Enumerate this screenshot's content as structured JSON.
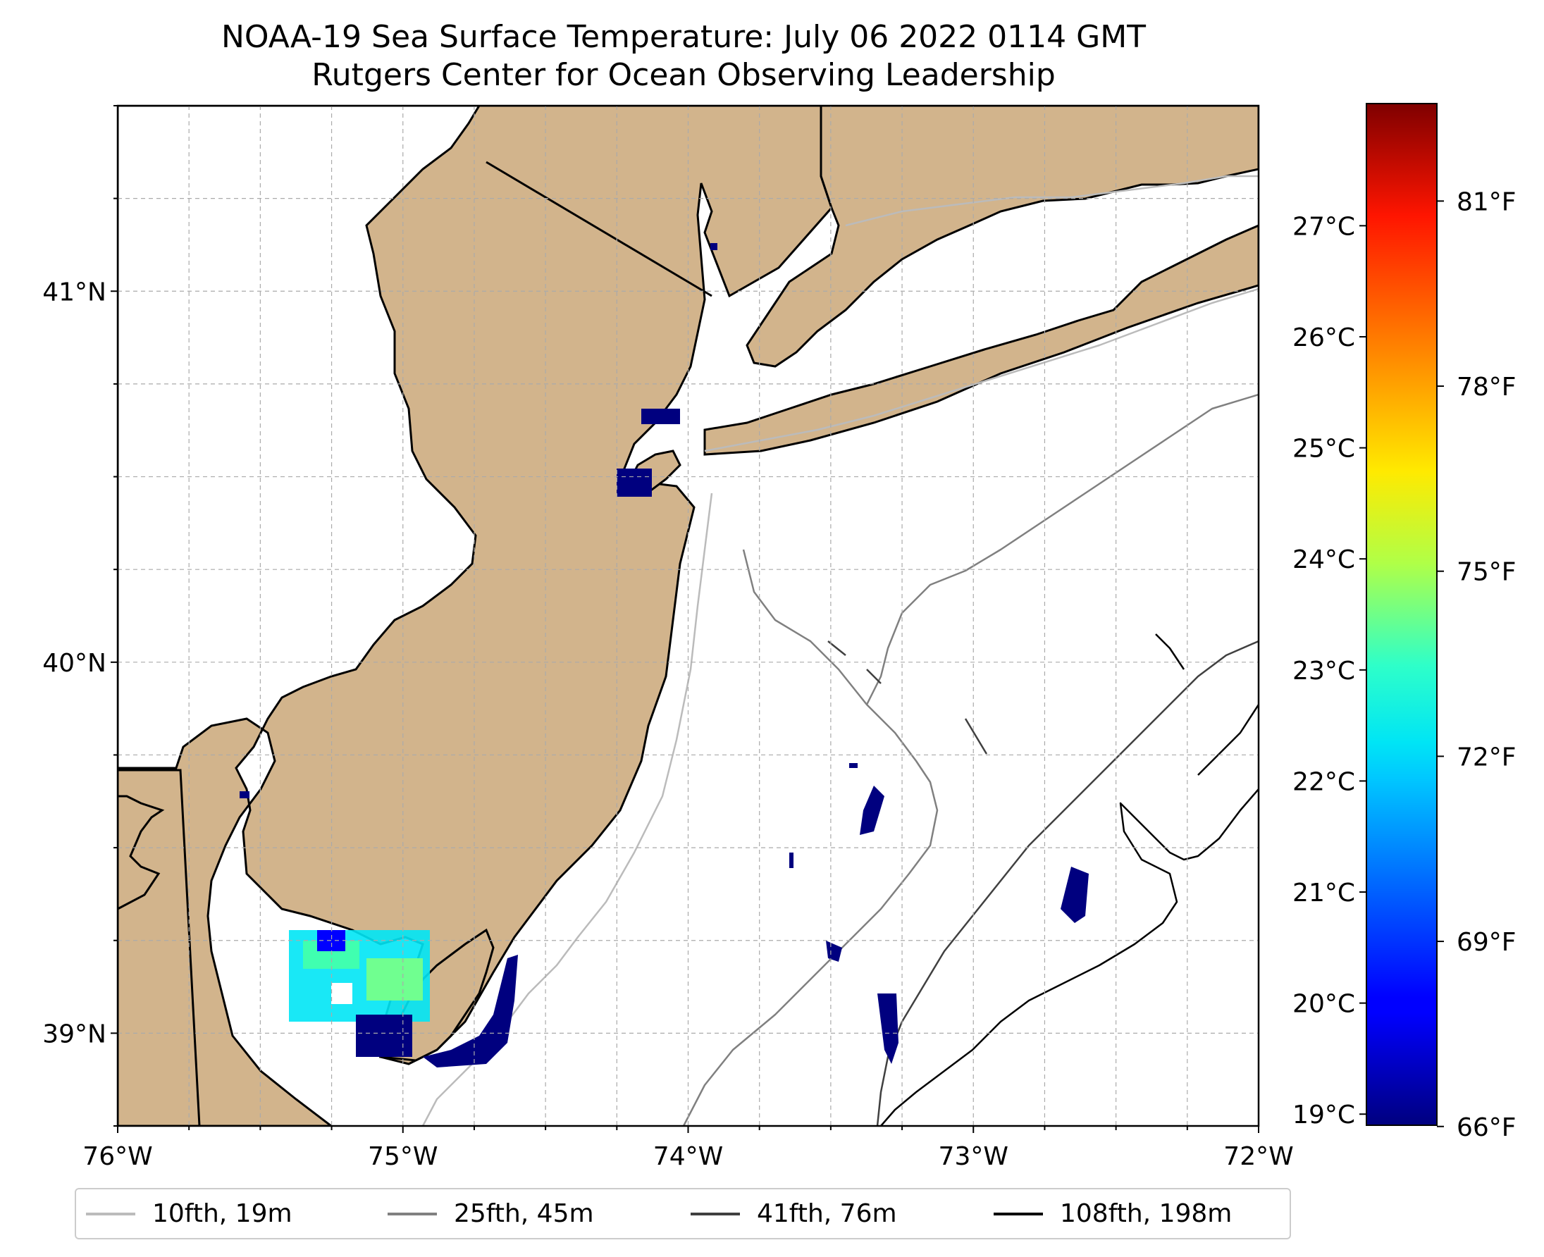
{
  "title": "NOAA-19 Sea Surface Temperature: July 06 2022 0114 GMT",
  "subtitle": "Rutgers Center for Ocean Observing Leadership",
  "map": {
    "lon_range": [
      -76,
      -72
    ],
    "lat_range": [
      38.75,
      41.5
    ],
    "lon_ticks": [
      {
        "value": -76,
        "label": "76°W"
      },
      {
        "value": -75,
        "label": "75°W"
      },
      {
        "value": -74,
        "label": "74°W"
      },
      {
        "value": -73,
        "label": "73°W"
      },
      {
        "value": -72,
        "label": "72°W"
      }
    ],
    "lat_ticks": [
      {
        "value": 39,
        "label": "39°N"
      },
      {
        "value": 40,
        "label": "40°N"
      },
      {
        "value": 41,
        "label": "41°N"
      }
    ],
    "gridlines": "dashed",
    "land_color": "#d2b48c",
    "ocean_color": "#ffffff"
  },
  "colorbar": {
    "colormap": "jet",
    "celsius_range": [
      18.9,
      28.1
    ],
    "celsius_ticks": [
      "19°C",
      "20°C",
      "21°C",
      "22°C",
      "23°C",
      "24°C",
      "25°C",
      "26°C",
      "27°C"
    ],
    "fahrenheit_ticks": [
      "66°F",
      "69°F",
      "72°F",
      "75°F",
      "78°F",
      "81°F"
    ],
    "celsius_tick_values": [
      19,
      20,
      21,
      22,
      23,
      24,
      25,
      26,
      27
    ],
    "fahrenheit_tick_values": [
      66,
      69,
      72,
      75,
      78,
      81
    ]
  },
  "legend": {
    "placement": "bottom",
    "items": [
      {
        "label": "10fth, 19m",
        "color": "#bbbbbb"
      },
      {
        "label": "25fth, 45m",
        "color": "#808080"
      },
      {
        "label": "41fth, 76m",
        "color": "#404040"
      },
      {
        "label": "108fth, 198m",
        "color": "#000000"
      }
    ]
  }
}
